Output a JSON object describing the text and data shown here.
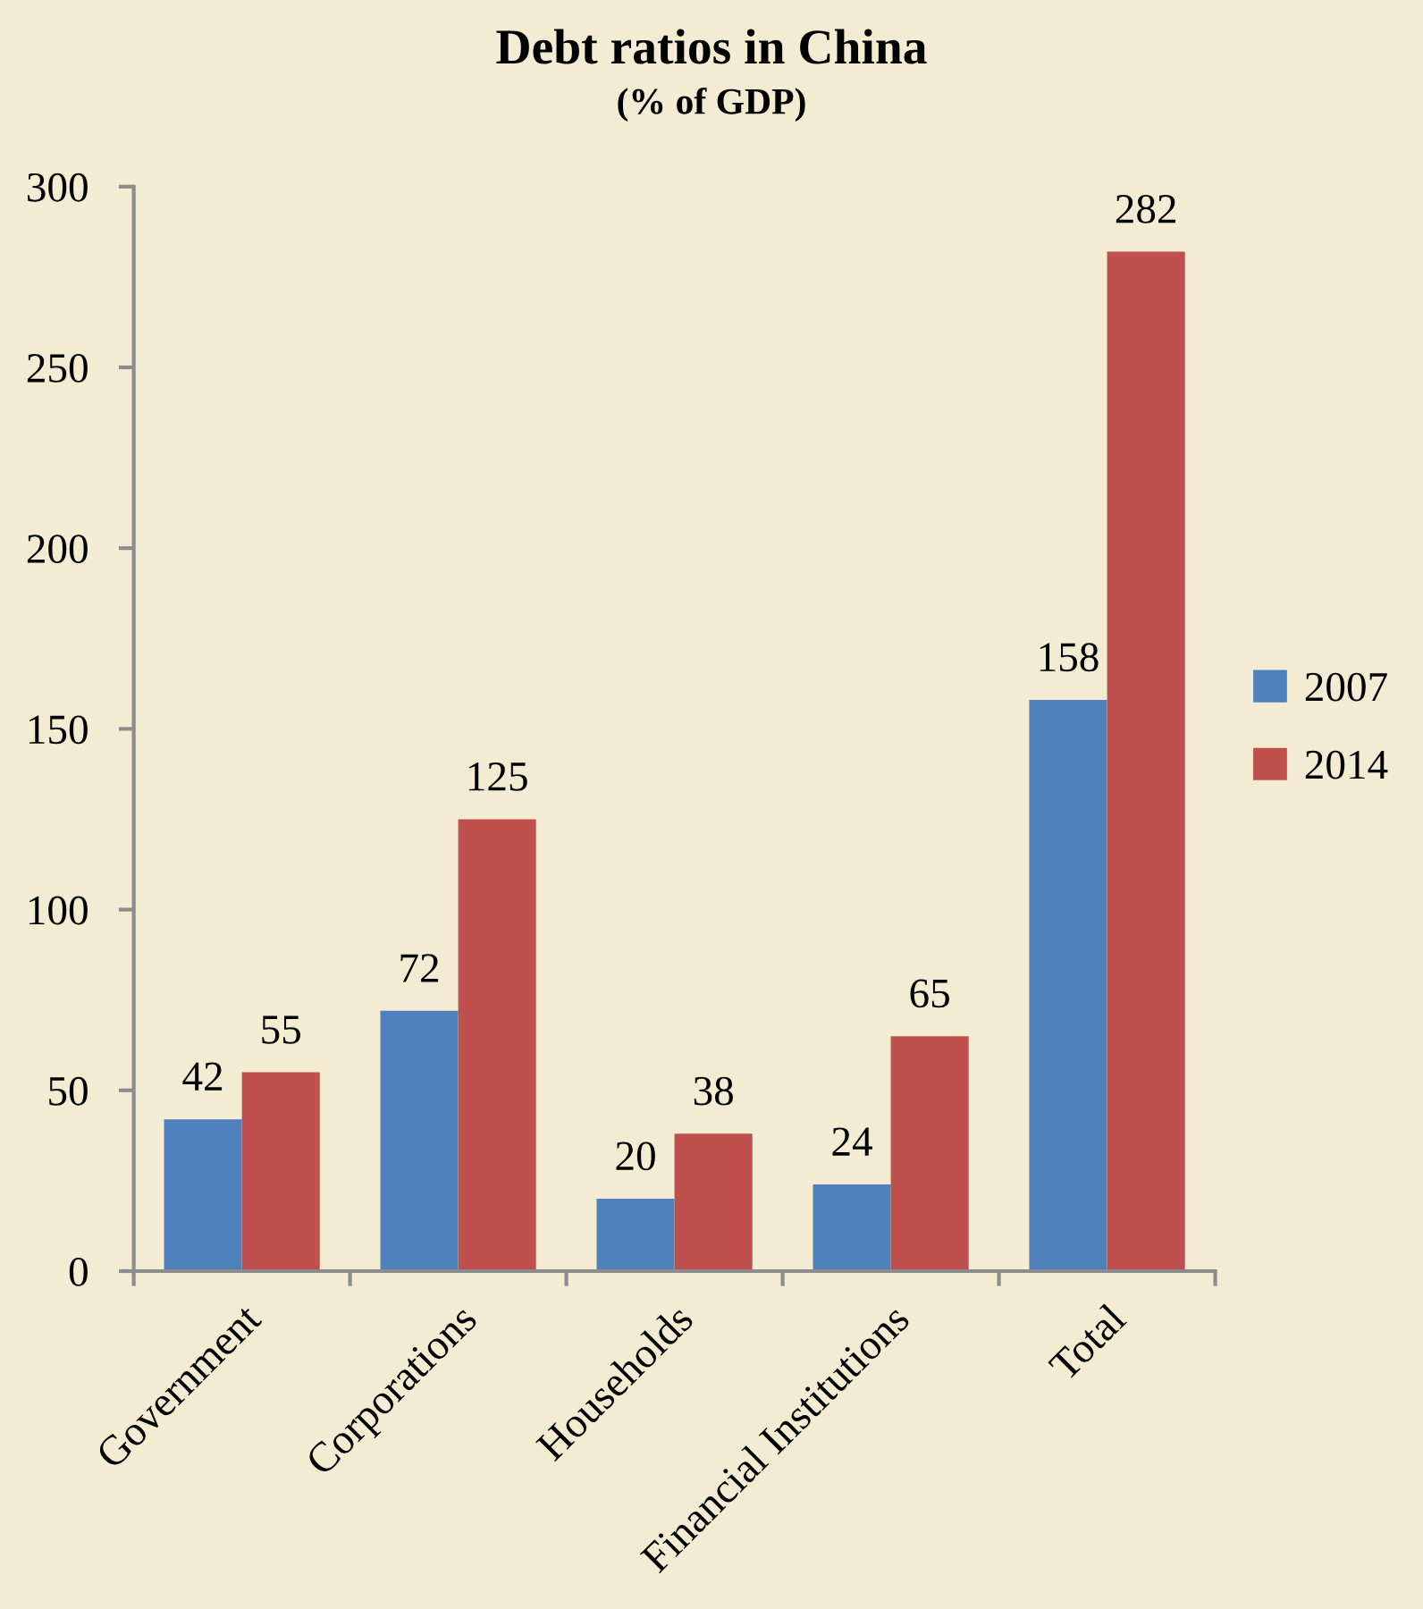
{
  "chart_data": {
    "type": "bar",
    "title": "Debt ratios in China",
    "subtitle": "(% of GDP)",
    "categories": [
      "Government",
      "Corporations",
      "Households",
      "Financial Institutions",
      "Total"
    ],
    "series": [
      {
        "name": "2007",
        "color": "#4f81bd",
        "values": [
          42,
          72,
          20,
          24,
          158
        ]
      },
      {
        "name": "2014",
        "color": "#c0504d",
        "values": [
          55,
          125,
          38,
          65,
          282
        ]
      }
    ],
    "ylim": [
      0,
      300
    ],
    "yticks": [
      0,
      50,
      100,
      150,
      200,
      250,
      300
    ],
    "data_labels": true,
    "grid": false,
    "legend": "right"
  }
}
